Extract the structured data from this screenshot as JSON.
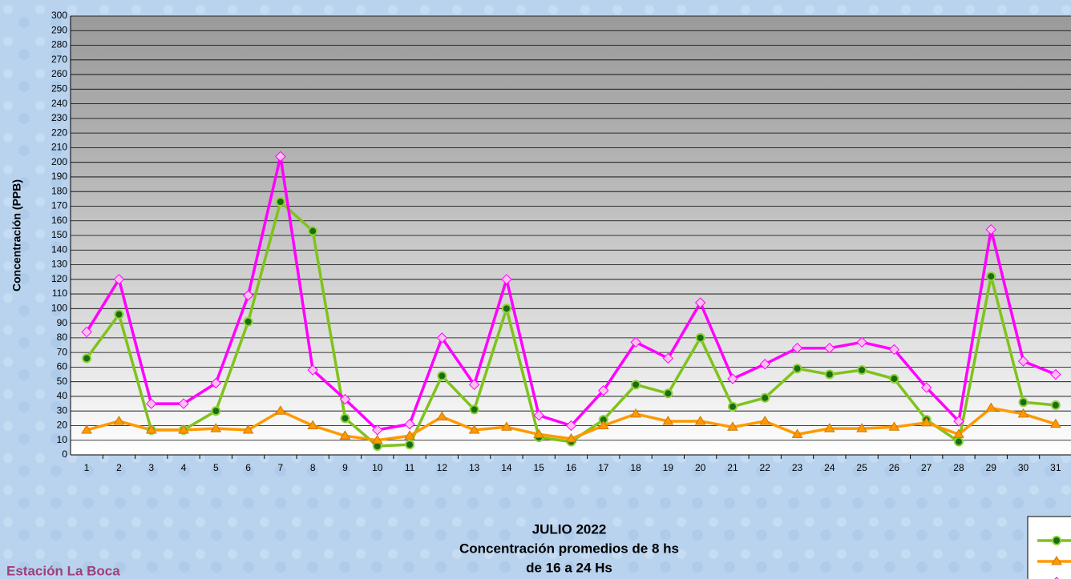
{
  "chart_data": {
    "type": "line",
    "title": "JULIO 2022",
    "subtitle": [
      "Concentración promedios de 8 hs",
      "de 16 a 24 Hs"
    ],
    "station": "Estación La Boca",
    "y_label": "Concentración  (PPB)",
    "categories": [
      "1",
      "2",
      "3",
      "4",
      "5",
      "6",
      "7",
      "8",
      "9",
      "10",
      "11",
      "12",
      "13",
      "14",
      "15",
      "16",
      "17",
      "18",
      "19",
      "20",
      "21",
      "22",
      "23",
      "24",
      "25",
      "26",
      "27",
      "28",
      "29",
      "30",
      "31"
    ],
    "series": [
      {
        "color": "#7fc31c",
        "marker": "circle",
        "values": [
          66,
          96,
          17,
          17,
          30,
          91,
          173,
          153,
          25,
          6,
          7,
          54,
          31,
          100,
          12,
          9,
          24,
          48,
          42,
          80,
          33,
          39,
          59,
          55,
          58,
          52,
          24,
          9,
          122,
          36,
          34
        ]
      },
      {
        "color": "#ff9900",
        "marker": "triangle",
        "values": [
          17,
          23,
          17,
          17,
          18,
          17,
          30,
          20,
          13,
          10,
          13,
          26,
          17,
          19,
          14,
          11,
          20,
          28,
          23,
          23,
          19,
          23,
          14,
          18,
          18,
          19,
          22,
          14,
          32,
          28,
          21
        ]
      },
      {
        "color": "#ff00ff",
        "marker": "diamond",
        "values": [
          84,
          120,
          35,
          35,
          49,
          109,
          204,
          58,
          38,
          17,
          21,
          80,
          48,
          120,
          27,
          20,
          44,
          77,
          66,
          104,
          52,
          62,
          73,
          73,
          77,
          72,
          46,
          23,
          154,
          64,
          55
        ]
      }
    ],
    "ylim": [
      0,
      300
    ],
    "yticks": [
      0,
      10,
      20,
      30,
      40,
      50,
      60,
      70,
      80,
      90,
      100,
      110,
      120,
      130,
      140,
      150,
      160,
      170,
      180,
      190,
      200,
      210,
      220,
      230,
      240,
      250,
      260,
      270,
      280,
      290,
      300
    ],
    "grid": true
  }
}
